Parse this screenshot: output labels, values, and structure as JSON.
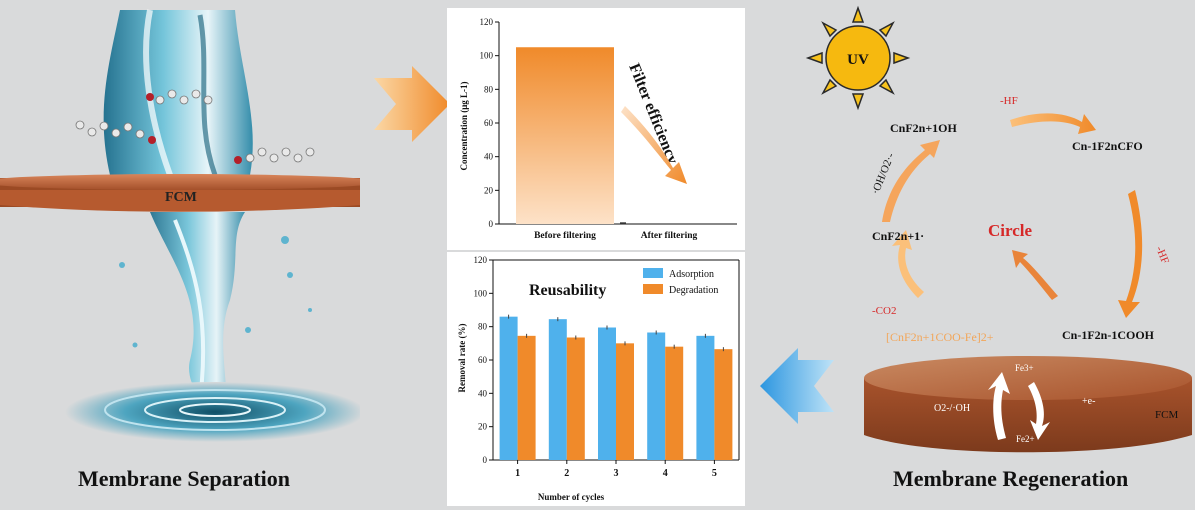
{
  "left_panel": {
    "membrane_label": "FCM",
    "caption": "Membrane Separation"
  },
  "right_panel": {
    "caption": "Membrane Regeneration",
    "uv_label": "UV",
    "cycle_center": "Circle",
    "species": {
      "top": "CnF2n+1OH",
      "right_top": "Cn-1F2nCFO",
      "right_bottom": "Cn-1F2n-1COOH",
      "bottom_left": "[CnF2n+1COO-Fe]2+",
      "left": "CnF2n+1·"
    },
    "steps": {
      "minus_hf_top": "-HF",
      "minus_hf_right": "-HF",
      "minus_co2": "-CO2",
      "oh_o2": "·OH/O2·-"
    },
    "disk": {
      "label": "FCM",
      "fe3": "Fe3+",
      "fe2": "Fe2+",
      "electron": "+e-",
      "radicals": "O2-/·OH"
    }
  },
  "colors": {
    "orange": "#f08a2a",
    "blue": "#4fb1ec",
    "membrane": "#b85e33",
    "red_text": "#d62828"
  },
  "chart_data": [
    {
      "type": "bar",
      "categories": [
        "Before filtering",
        "After filtering"
      ],
      "values": [
        105,
        1
      ],
      "ylabel": "Concentration (μg L-1)",
      "ylim": [
        0,
        120
      ],
      "yticks": [
        "0",
        "20",
        "40",
        "60",
        "80",
        "100",
        "120"
      ],
      "annotation": "Filter efficiency"
    },
    {
      "type": "bar",
      "title": "Reusability",
      "categories": [
        "1",
        "2",
        "3",
        "4",
        "5"
      ],
      "xlabel": "Number of cycles",
      "ylabel": "Removal rate (%)",
      "ylim": [
        0,
        120
      ],
      "yticks": [
        "0",
        "20",
        "40",
        "60",
        "80",
        "100",
        "120"
      ],
      "series": [
        {
          "name": "Adsorption",
          "values": [
            86,
            84.5,
            79.5,
            76.5,
            74.5
          ]
        },
        {
          "name": "Degradation",
          "values": [
            74.5,
            73.5,
            70,
            68,
            66.5
          ]
        }
      ]
    }
  ]
}
